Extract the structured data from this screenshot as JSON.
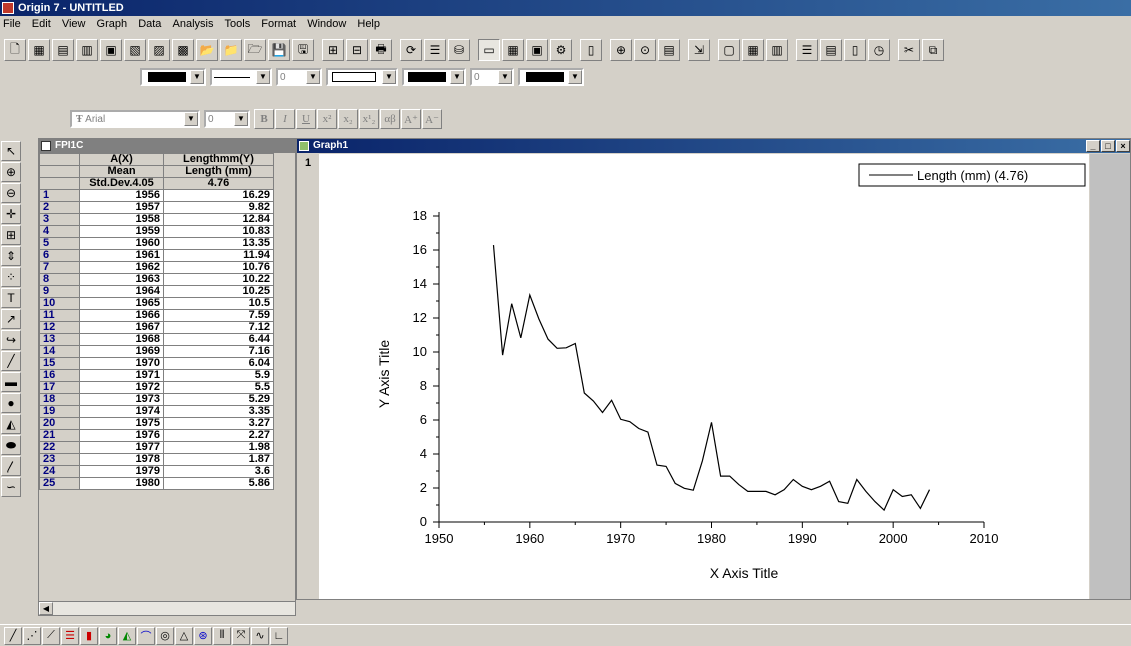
{
  "app": {
    "title": "Origin 7 - UNTITLED"
  },
  "menu": [
    "File",
    "Edit",
    "View",
    "Graph",
    "Data",
    "Analysis",
    "Tools",
    "Format",
    "Window",
    "Help"
  ],
  "toolbar2": {
    "font_size": "0",
    "line_width": "0"
  },
  "format_toolbar": {
    "font": "Arial",
    "size": "0",
    "bold": "B",
    "italic": "I",
    "underline": "U"
  },
  "worksheet": {
    "title": "FPI1C",
    "columns": [
      "A(X)",
      "Lengthmm(Y)"
    ],
    "stat_row_1": [
      "Mean",
      "Length (mm)"
    ],
    "stat_row_2": [
      "Std.Dev.4.05",
      "4.76"
    ],
    "rows": [
      [
        "1",
        "1956",
        "16.29"
      ],
      [
        "2",
        "1957",
        "9.82"
      ],
      [
        "3",
        "1958",
        "12.84"
      ],
      [
        "4",
        "1959",
        "10.83"
      ],
      [
        "5",
        "1960",
        "13.35"
      ],
      [
        "6",
        "1961",
        "11.94"
      ],
      [
        "7",
        "1962",
        "10.76"
      ],
      [
        "8",
        "1963",
        "10.22"
      ],
      [
        "9",
        "1964",
        "10.25"
      ],
      [
        "10",
        "1965",
        "10.5"
      ],
      [
        "11",
        "1966",
        "7.59"
      ],
      [
        "12",
        "1967",
        "7.12"
      ],
      [
        "13",
        "1968",
        "6.44"
      ],
      [
        "14",
        "1969",
        "7.16"
      ],
      [
        "15",
        "1970",
        "6.04"
      ],
      [
        "16",
        "1971",
        "5.9"
      ],
      [
        "17",
        "1972",
        "5.5"
      ],
      [
        "18",
        "1973",
        "5.29"
      ],
      [
        "19",
        "1974",
        "3.35"
      ],
      [
        "20",
        "1975",
        "3.27"
      ],
      [
        "21",
        "1976",
        "2.27"
      ],
      [
        "22",
        "1977",
        "1.98"
      ],
      [
        "23",
        "1978",
        "1.87"
      ],
      [
        "24",
        "1979",
        "3.6"
      ],
      [
        "25",
        "1980",
        "5.86"
      ]
    ]
  },
  "graph": {
    "title": "Graph1",
    "layer": "1"
  },
  "chart_data": {
    "type": "line",
    "xlabel": "X Axis Title",
    "ylabel": "Y Axis Title",
    "xlim": [
      1950,
      2010
    ],
    "ylim": [
      0,
      18
    ],
    "xticks": [
      1950,
      1960,
      1970,
      1980,
      1990,
      2000,
      2010
    ],
    "yticks": [
      0,
      2,
      4,
      6,
      8,
      10,
      12,
      14,
      16,
      18
    ],
    "legend": "top-right",
    "series": [
      {
        "name": "Length (mm) (4.76)",
        "x": [
          1956,
          1957,
          1958,
          1959,
          1960,
          1961,
          1962,
          1963,
          1964,
          1965,
          1966,
          1967,
          1968,
          1969,
          1970,
          1971,
          1972,
          1973,
          1974,
          1975,
          1976,
          1977,
          1978,
          1979,
          1980,
          1981,
          1982,
          1983,
          1984,
          1985,
          1986,
          1987,
          1988,
          1989,
          1990,
          1991,
          1992,
          1993,
          1994,
          1995,
          1996,
          1997,
          1998,
          1999,
          2000,
          2001,
          2002,
          2003,
          2004
        ],
        "values": [
          16.29,
          9.82,
          12.84,
          10.83,
          13.35,
          11.94,
          10.76,
          10.22,
          10.25,
          10.5,
          7.59,
          7.12,
          6.44,
          7.16,
          6.04,
          5.9,
          5.5,
          5.29,
          3.35,
          3.27,
          2.27,
          1.98,
          1.87,
          3.6,
          5.86,
          2.7,
          2.7,
          2.2,
          1.8,
          1.8,
          1.8,
          1.6,
          1.9,
          2.5,
          2.1,
          1.9,
          2.1,
          2.4,
          1.2,
          1.1,
          2.5,
          1.8,
          1.2,
          0.7,
          1.9,
          1.5,
          1.6,
          0.8,
          1.9
        ],
        "color": "#000000"
      }
    ]
  }
}
